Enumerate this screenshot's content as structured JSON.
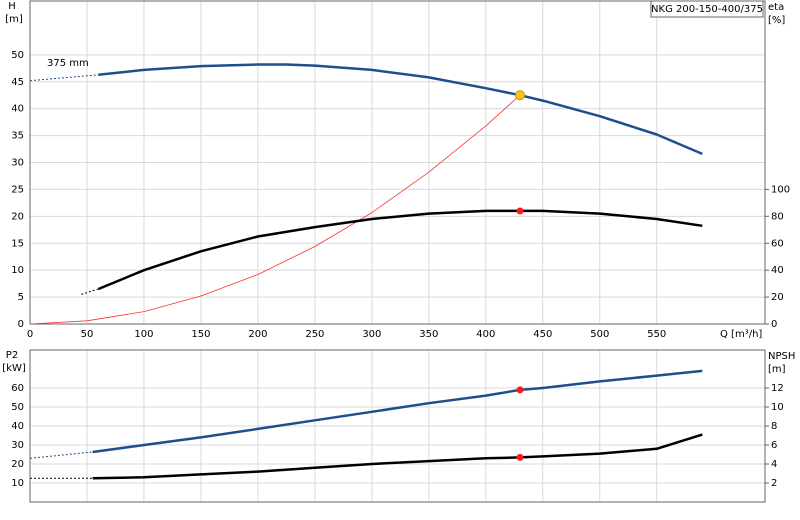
{
  "chart_data": [
    {
      "type": "line",
      "title": "NKG 200-150-400/375",
      "ylabel": "H",
      "yunit": "[m]",
      "y2label": "eta",
      "y2unit": "[%]",
      "xlabel": "Q [m³/h]",
      "annotation": "375 mm",
      "xlim": [
        0,
        645
      ],
      "xticks": [
        0,
        50,
        100,
        150,
        200,
        250,
        300,
        350,
        400,
        450,
        500,
        550
      ],
      "show_xtick_labels": true,
      "ylim": [
        0,
        60
      ],
      "yticks": [
        0,
        5,
        10,
        15,
        20,
        25,
        30,
        35,
        40,
        45,
        50
      ],
      "y2lim": [
        0,
        240
      ],
      "y2ticks": [
        0,
        20,
        40,
        60,
        80,
        100
      ],
      "grid": true,
      "series": [
        {
          "color": "#1f4e8c",
          "width": 1,
          "dash": true,
          "x": [
            0,
            60
          ],
          "values": [
            45.2,
            46.3
          ]
        },
        {
          "color": "#1f4e8c",
          "width": 2.5,
          "dash": false,
          "x": [
            60,
            100,
            150,
            200,
            225,
            250,
            300,
            350,
            400,
            430,
            450,
            500,
            550,
            590
          ],
          "values": [
            46.3,
            47.2,
            47.9,
            48.2,
            48.2,
            48,
            47.2,
            45.8,
            43.8,
            42.5,
            41.5,
            38.6,
            35.2,
            31.6
          ]
        },
        {
          "color": "#ff3030",
          "width": 0.8,
          "dash": false,
          "x": [
            0,
            50,
            100,
            150,
            200,
            250,
            300,
            350,
            400,
            430
          ],
          "values": [
            0,
            0.6,
            2.3,
            5.2,
            9.2,
            14.4,
            20.7,
            28.2,
            36.8,
            42.5
          ]
        },
        {
          "color": "#000000",
          "width": 1,
          "dash": true,
          "axis": "y2",
          "x": [
            45,
            60
          ],
          "values": [
            22,
            26
          ]
        },
        {
          "color": "#000000",
          "width": 2.5,
          "dash": false,
          "axis": "y2",
          "x": [
            60,
            100,
            150,
            200,
            250,
            300,
            350,
            400,
            430,
            450,
            500,
            550,
            590
          ],
          "values": [
            26,
            40,
            54,
            65,
            72,
            78,
            82,
            84,
            84,
            84,
            82,
            78,
            73
          ]
        }
      ],
      "points": [
        {
          "x": 430,
          "y": 42.5,
          "color": "#f5c518"
        },
        {
          "x": 430,
          "y": 84,
          "color": "#ff1a1a",
          "axis": "y2"
        }
      ]
    },
    {
      "type": "line",
      "ylabel": "P2",
      "yunit": "[kW]",
      "y2label": "NPSH",
      "y2unit": "[m]",
      "xlim": [
        0,
        645
      ],
      "xticks": [
        0,
        50,
        100,
        150,
        200,
        250,
        300,
        350,
        400,
        450,
        500,
        550
      ],
      "show_xtick_labels": false,
      "ylim": [
        0,
        80
      ],
      "yticks": [
        10,
        20,
        30,
        40,
        50,
        60
      ],
      "y2lim": [
        0,
        16
      ],
      "y2ticks": [
        2,
        4,
        6,
        8,
        10,
        12
      ],
      "grid": true,
      "series": [
        {
          "color": "#1f4e8c",
          "width": 1,
          "dash": true,
          "x": [
            0,
            55
          ],
          "values": [
            23,
            26.3
          ]
        },
        {
          "color": "#1f4e8c",
          "width": 2.5,
          "dash": false,
          "x": [
            55,
            100,
            150,
            200,
            250,
            300,
            350,
            400,
            430,
            450,
            500,
            550,
            590
          ],
          "values": [
            26.3,
            30,
            34,
            38.5,
            43,
            47.5,
            52,
            56,
            59,
            60,
            63.5,
            66.5,
            69
          ]
        },
        {
          "color": "#000000",
          "width": 1,
          "dash": true,
          "axis": "y2",
          "x": [
            0,
            55
          ],
          "values": [
            2.5,
            2.5
          ]
        },
        {
          "color": "#000000",
          "width": 2.5,
          "dash": false,
          "axis": "y2",
          "x": [
            55,
            100,
            150,
            200,
            250,
            300,
            350,
            400,
            430,
            450,
            500,
            550,
            590
          ],
          "values": [
            2.5,
            2.6,
            2.9,
            3.2,
            3.6,
            4,
            4.3,
            4.6,
            4.7,
            4.8,
            5.1,
            5.6,
            7.1
          ]
        }
      ],
      "points": [
        {
          "x": 430,
          "y": 59,
          "color": "#ff1a1a"
        },
        {
          "x": 430,
          "y": 4.7,
          "color": "#ff1a1a",
          "axis": "y2"
        }
      ]
    }
  ]
}
